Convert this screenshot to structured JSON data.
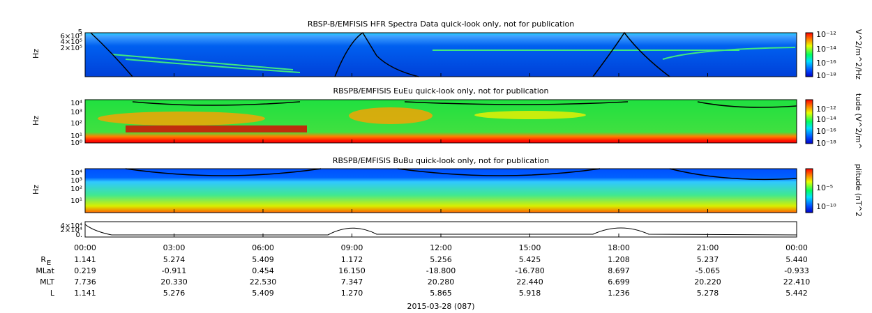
{
  "panels": [
    {
      "title": "RBSP-B/EMFISIS  HFR Spectra Data quick-look only, not for publication",
      "y_label": "Hz",
      "y_ticks": [
        "5",
        "6×10⁵",
        "4×10⁵",
        "2×10⁵"
      ],
      "colorbar_label": "V^2/m^2/Hz",
      "colorbar_ticks": [
        "10⁻¹²",
        "10⁻¹⁴",
        "10⁻¹⁶",
        "10⁻¹⁸"
      ]
    },
    {
      "title": "RBSPB/EMFISIS  EuEu quick-look only, not for publication",
      "y_label": "Hz",
      "y_ticks": [
        "10⁴",
        "10³",
        "10²",
        "10¹",
        "10⁰"
      ],
      "colorbar_label": "tude (V^2/m^",
      "colorbar_ticks": [
        "10⁻¹²",
        "10⁻¹⁴",
        "10⁻¹⁶",
        "10⁻¹⁸"
      ]
    },
    {
      "title": "RBSPB/EMFISIS  BuBu quick-look only, not for publication",
      "y_label": "Hz",
      "y_ticks": [
        "10⁴",
        "10³",
        "10²",
        "10¹"
      ],
      "colorbar_label": "plitude (nT^2",
      "colorbar_ticks": [
        "10⁻⁵",
        "10⁻¹⁰"
      ]
    },
    {
      "y_ticks": [
        "4×10⁴",
        "2×10⁴",
        "0."
      ]
    }
  ],
  "x_ticks": [
    "00:00",
    "03:00",
    "06:00",
    "09:00",
    "12:00",
    "15:00",
    "18:00",
    "21:00",
    "00:00"
  ],
  "ephemeris": [
    {
      "label": "R",
      "sub": "E",
      "values": [
        "1.141",
        "5.274",
        "5.409",
        "1.172",
        "5.256",
        "5.425",
        "1.208",
        "5.237",
        "5.440"
      ]
    },
    {
      "label": "MLat",
      "values": [
        "0.219",
        "-0.911",
        "0.454",
        "16.150",
        "-18.800",
        "-16.780",
        "8.697",
        "-5.065",
        "-0.933"
      ]
    },
    {
      "label": "MLT",
      "values": [
        "7.736",
        "20.330",
        "22.530",
        "7.347",
        "20.280",
        "22.440",
        "6.699",
        "20.220",
        "22.410"
      ]
    },
    {
      "label": "L",
      "values": [
        "1.141",
        "5.276",
        "5.409",
        "1.270",
        "5.865",
        "5.918",
        "1.236",
        "5.278",
        "5.442"
      ]
    }
  ],
  "date": "2015-03-28 (087)"
}
